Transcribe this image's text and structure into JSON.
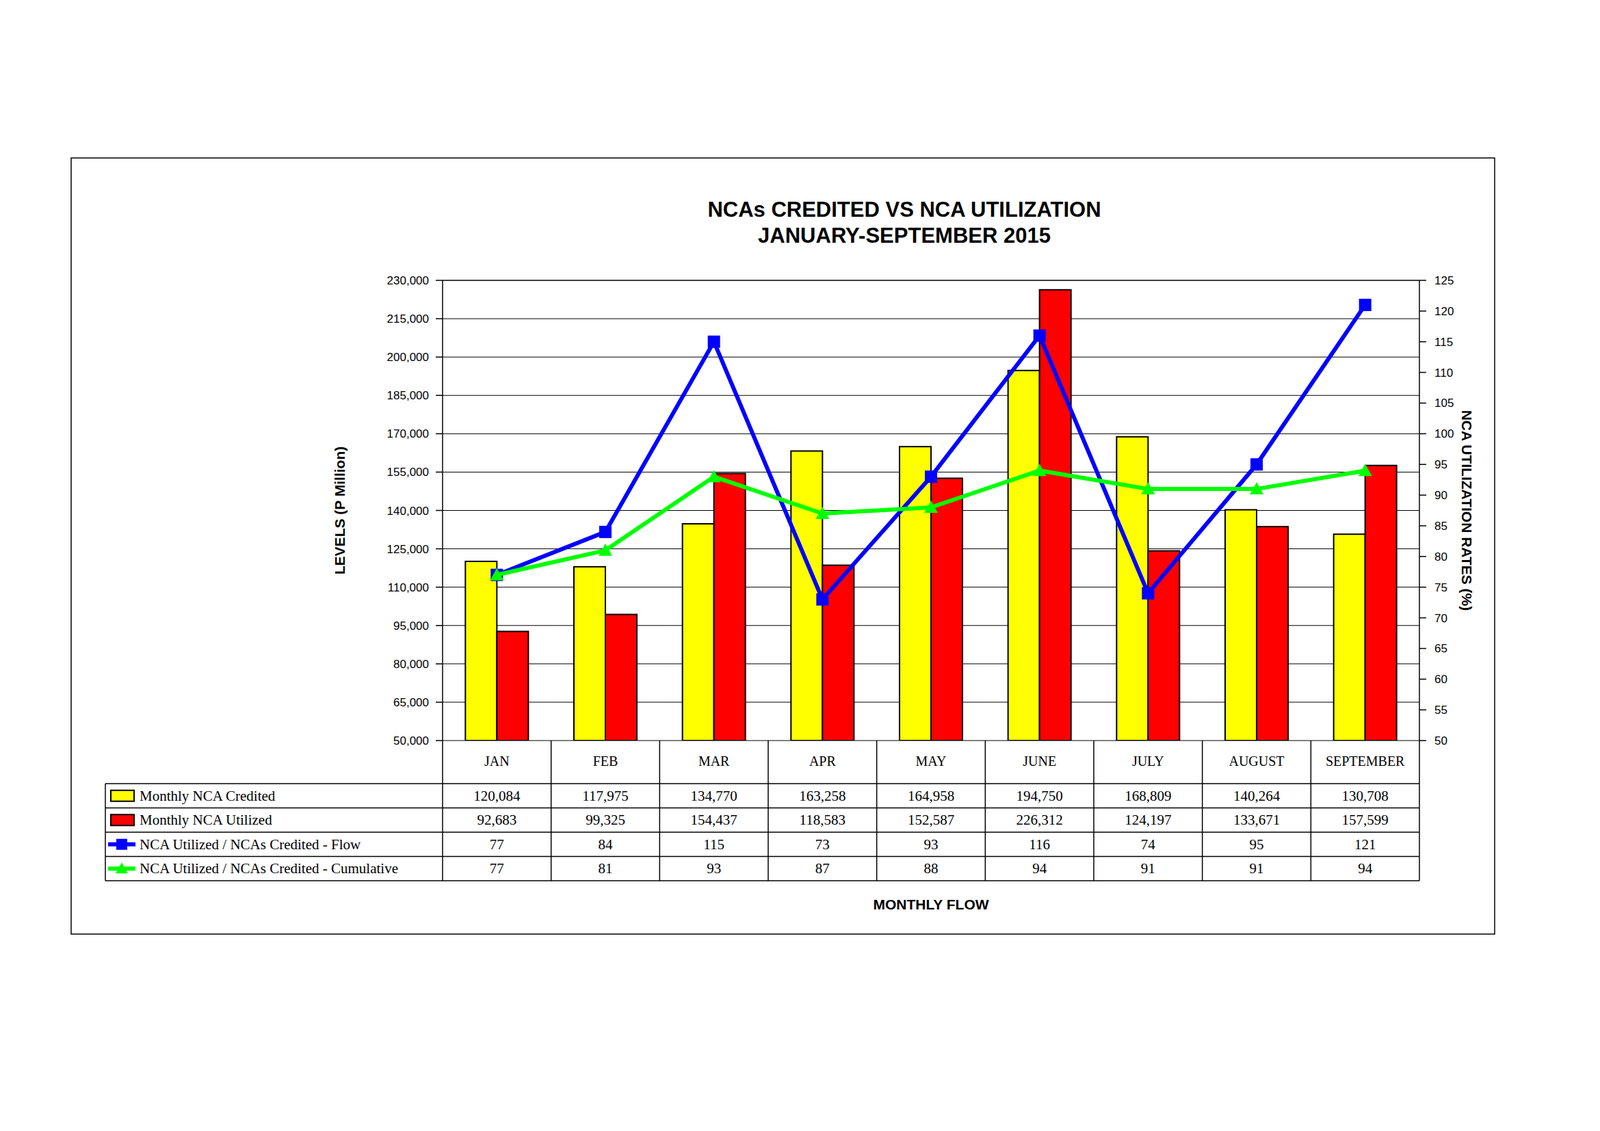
{
  "chart_data": {
    "type": "bar",
    "title": "NCAs CREDITED VS NCA UTILIZATION",
    "subtitle": "JANUARY-SEPTEMBER 2015",
    "y_label": "LEVELS (P Million)",
    "y2_label": "NCA UTILIZATION RATES (%)",
    "x_label": "MONTHLY FLOW",
    "categories": [
      "JAN",
      "FEB",
      "MAR",
      "APR",
      "MAY",
      "JUNE",
      "JULY",
      "AUGUST",
      "SEPTEMBER"
    ],
    "series": [
      {
        "name": "Monthly NCA Credited",
        "type": "bar",
        "color": "#ffff00",
        "values": [
          120084,
          117975,
          134770,
          163258,
          164958,
          194750,
          168809,
          140264,
          130708
        ],
        "value_labels": [
          "120,084",
          "117,975",
          "134,770",
          "163,258",
          "164,958",
          "194,750",
          "168,809",
          "140,264",
          "130,708"
        ]
      },
      {
        "name": "Monthly NCA Utilized",
        "type": "bar",
        "color": "#ff0000",
        "values": [
          92683,
          99325,
          154437,
          118583,
          152587,
          226312,
          124197,
          133671,
          157599
        ],
        "value_labels": [
          "92,683",
          "99,325",
          "154,437",
          "118,583",
          "152,587",
          "226,312",
          "124,197",
          "133,671",
          "157,599"
        ]
      },
      {
        "name": "NCA Utilized / NCAs Credited - Flow",
        "type": "line",
        "axis": "y2",
        "color": "#0000ff",
        "marker": "square",
        "values": [
          77,
          84,
          115,
          73,
          93,
          116,
          74,
          95,
          121
        ]
      },
      {
        "name": "NCA Utilized / NCAs Credited - Cumulative",
        "type": "line",
        "axis": "y2",
        "color": "#00ff00",
        "marker": "triangle",
        "values": [
          77,
          81,
          93,
          87,
          88,
          94,
          91,
          91,
          94
        ]
      }
    ],
    "ylim": [
      50000,
      230000
    ],
    "yticks": [
      {
        "value": 50000,
        "label": "50,000"
      },
      {
        "value": 65000,
        "label": "65,000"
      },
      {
        "value": 80000,
        "label": "80,000"
      },
      {
        "value": 95000,
        "label": "95,000"
      },
      {
        "value": 110000,
        "label": "110,000"
      },
      {
        "value": 125000,
        "label": "125,000"
      },
      {
        "value": 140000,
        "label": "140,000"
      },
      {
        "value": 155000,
        "label": "155,000"
      },
      {
        "value": 170000,
        "label": "170,000"
      },
      {
        "value": 185000,
        "label": "185,000"
      },
      {
        "value": 200000,
        "label": "200,000"
      },
      {
        "value": 215000,
        "label": "215,000"
      },
      {
        "value": 230000,
        "label": "230,000"
      }
    ],
    "y2lim": [
      50,
      125
    ],
    "y2ticks": [
      50,
      55,
      60,
      65,
      70,
      75,
      80,
      85,
      90,
      95,
      100,
      105,
      110,
      115,
      120,
      125
    ],
    "grid": true,
    "legend": "bottom",
    "data_labels": true
  }
}
